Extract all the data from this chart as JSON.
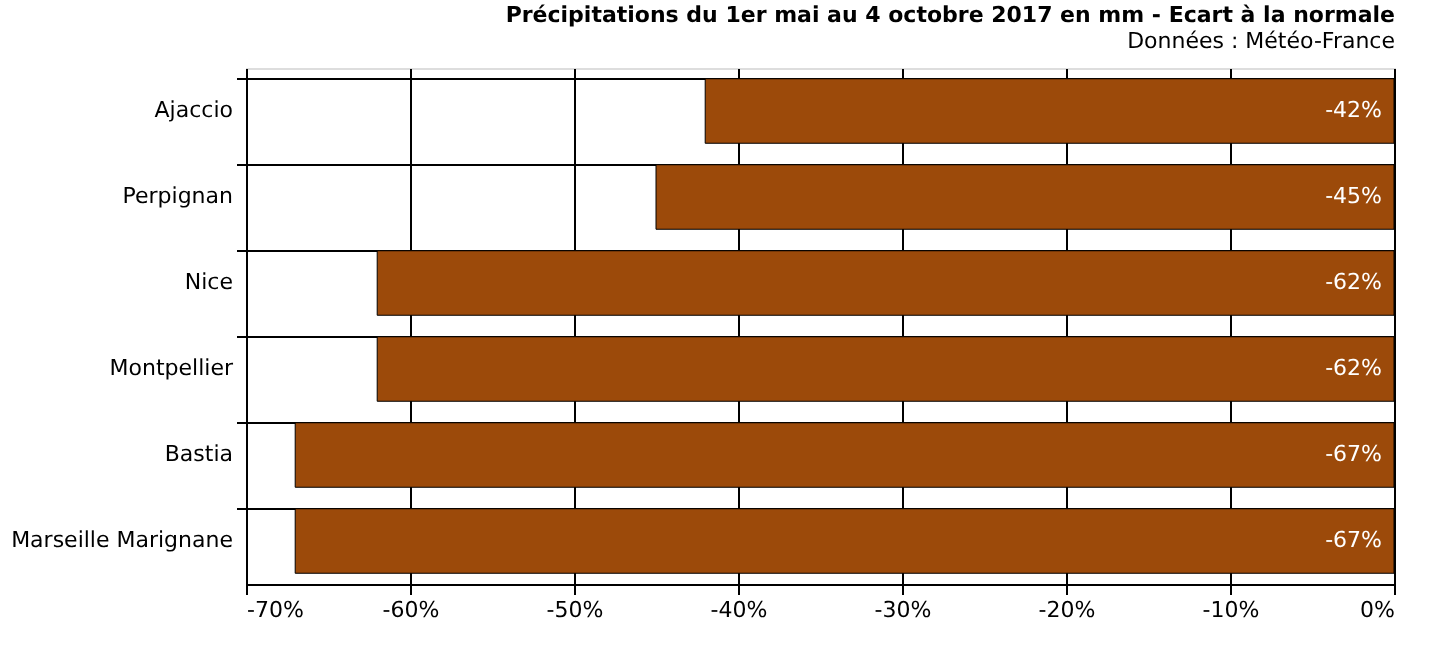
{
  "chart_data": {
    "type": "bar",
    "orientation": "horizontal",
    "title": "Précipitations du 1er mai au 4 octobre 2017 en mm - Ecart à la normale",
    "subtitle": "Données : Météo-France",
    "categories": [
      "Ajaccio",
      "Perpignan",
      "Nice",
      "Montpellier",
      "Bastia",
      "Marseille Marignane"
    ],
    "values": [
      -42,
      -45,
      -62,
      -62,
      -67,
      -67
    ],
    "value_labels": [
      "-42%",
      "-45%",
      "-62%",
      "-62%",
      "-67%",
      "-67%"
    ],
    "color": "#9c4a0a",
    "xlim": [
      -70,
      0
    ],
    "xticks": [
      {
        "value": -70,
        "label": "-70%"
      },
      {
        "value": -60,
        "label": "-60%"
      },
      {
        "value": -50,
        "label": "-50%"
      },
      {
        "value": -40,
        "label": "-40%"
      },
      {
        "value": -30,
        "label": "-30%"
      },
      {
        "value": -20,
        "label": "-20%"
      },
      {
        "value": -10,
        "label": "-10%"
      },
      {
        "value": 0,
        "label": "0%"
      }
    ],
    "grid": true
  }
}
